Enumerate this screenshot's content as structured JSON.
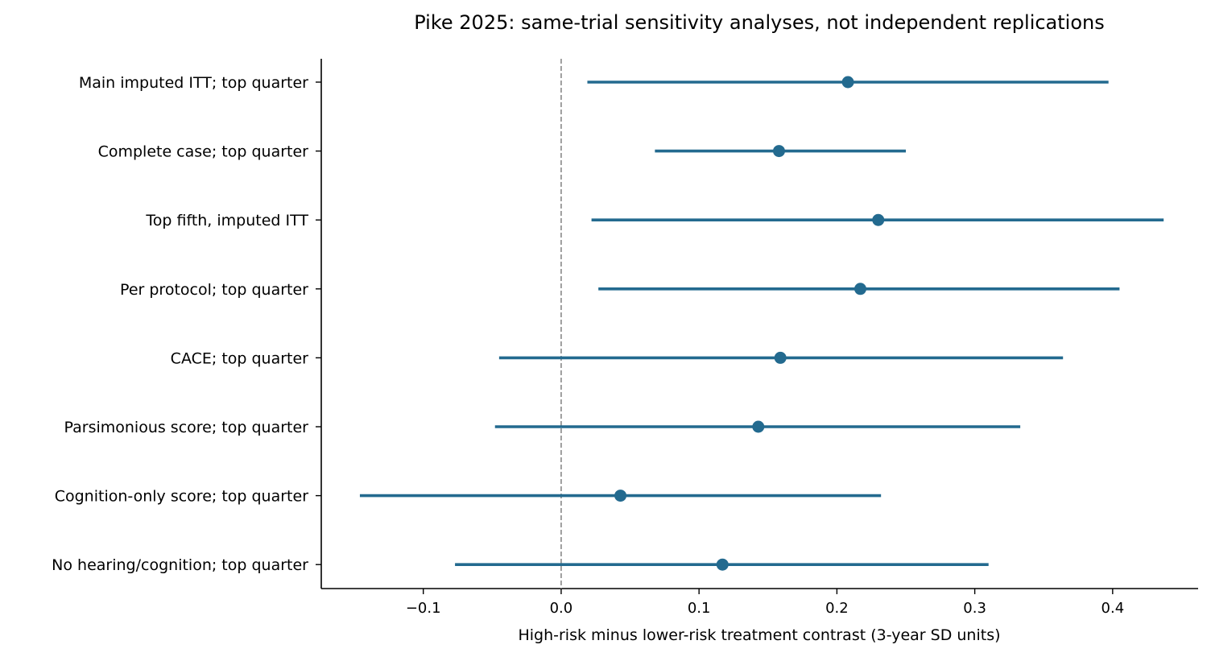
{
  "chart_data": {
    "type": "forest",
    "title": "Pike 2025: same-trial sensitivity analyses, not independent replications",
    "xlabel": "High-risk minus lower-risk treatment contrast (3-year SD units)",
    "ylabel": "",
    "xlim": [
      -0.174,
      0.462
    ],
    "xticks": [
      -0.1,
      0.0,
      0.1,
      0.2,
      0.3,
      0.4
    ],
    "xtick_labels": [
      "−0.1",
      "0.0",
      "0.1",
      "0.2",
      "0.3",
      "0.4"
    ],
    "reference_line": 0.0,
    "grid": false,
    "colors": {
      "series": "#236a8f",
      "reference": "#888888"
    },
    "rows": [
      {
        "label": "Main imputed ITT; top quarter",
        "estimate": 0.208,
        "lower": 0.019,
        "upper": 0.397
      },
      {
        "label": "Complete case; top quarter",
        "estimate": 0.158,
        "lower": 0.068,
        "upper": 0.25
      },
      {
        "label": "Top fifth, imputed ITT",
        "estimate": 0.23,
        "lower": 0.022,
        "upper": 0.437
      },
      {
        "label": "Per protocol; top quarter",
        "estimate": 0.217,
        "lower": 0.027,
        "upper": 0.405
      },
      {
        "label": "CACE; top quarter",
        "estimate": 0.159,
        "lower": -0.045,
        "upper": 0.364
      },
      {
        "label": "Parsimonious score; top quarter",
        "estimate": 0.143,
        "lower": -0.048,
        "upper": 0.333
      },
      {
        "label": "Cognition-only score; top quarter",
        "estimate": 0.043,
        "lower": -0.146,
        "upper": 0.232
      },
      {
        "label": "No hearing/cognition; top quarter",
        "estimate": 0.117,
        "lower": -0.077,
        "upper": 0.31
      }
    ]
  }
}
